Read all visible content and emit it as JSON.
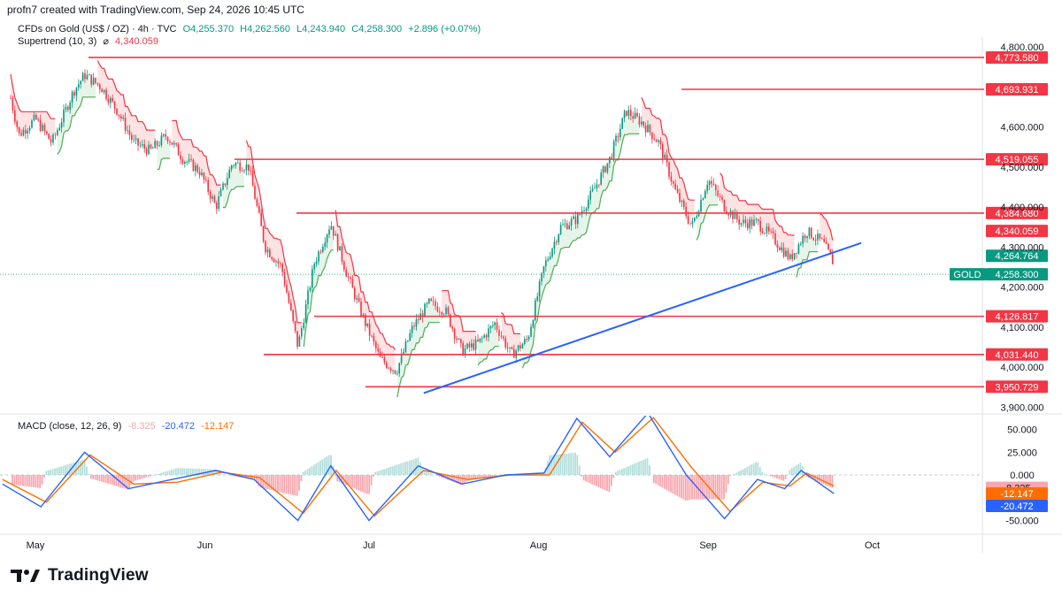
{
  "header": {
    "text": "profn7 created with TradingView.com, Sep 24, 2026 10:45 UTC"
  },
  "legend": {
    "symbol": "CFDs on Gold (US$ / OZ) · 4h · TVC",
    "open": "O4,255.370",
    "high": "H4,262.560",
    "low": "L4,243.940",
    "close": "C4,258.300",
    "change": "+2.896 (+0.07%)",
    "supertrend_label": "Supertrend (10, 3)",
    "supertrend_symbol": "⌀",
    "supertrend_value": "4,340.059"
  },
  "macd_legend": {
    "label": "MACD (close, 12, 26, 9)",
    "hist": "-8.325",
    "macd": "-20.472",
    "signal": "-12.147"
  },
  "footer": {
    "brand": "TradingView"
  },
  "colors": {
    "up": "#089981",
    "down": "#f23645",
    "level": "#f23645",
    "trendline": "#2962ff",
    "macd": "#2962ff",
    "signal": "#ff6d00",
    "st_up_fill": "#e6f4ea",
    "st_down_fill": "#fde3e3"
  },
  "chart_data": {
    "type": "candlestick",
    "symbol": "GOLD",
    "timeframe": "4h",
    "x_labels": [
      "May",
      "Jun",
      "Jul",
      "Aug",
      "Sep",
      "Oct"
    ],
    "y_ticks": [
      "4,800.000",
      "4,600.000",
      "4,500.000",
      "4,400.000",
      "4,300.000",
      "4,200.000",
      "4,100.000",
      "4,000.000",
      "3,900.000"
    ],
    "ylim": [
      3880,
      4830
    ],
    "levels": [
      {
        "label": "4,773.580",
        "value": 4773.58
      },
      {
        "label": "4,693.931",
        "value": 4693.931
      },
      {
        "label": "4,519.055",
        "value": 4519.055
      },
      {
        "label": "4,384.680",
        "value": 4384.68
      },
      {
        "label": "4,126.817",
        "value": 4126.817
      },
      {
        "label": "4,031.440",
        "value": 4031.44
      },
      {
        "label": "3,950.729",
        "value": 3950.729
      }
    ],
    "price_tags": [
      {
        "label": "4,340.059",
        "value": 4340.059,
        "kind": "supertrend"
      },
      {
        "label": "4,264.764",
        "value": 4264.764,
        "kind": "bid"
      },
      {
        "label": "4,258.300",
        "value": 4258.3,
        "kind": "last",
        "prefix": "GOLD"
      }
    ],
    "trendline": {
      "from": [
        "2026-07-11",
        3935
      ],
      "to": [
        "2026-09-29",
        4310
      ]
    },
    "close_path": [
      [
        "2026-04-25",
        4760
      ],
      [
        "2026-04-28",
        4580
      ],
      [
        "2026-05-01",
        4620
      ],
      [
        "2026-05-04",
        4560
      ],
      [
        "2026-05-08",
        4690
      ],
      [
        "2026-05-10",
        4730
      ],
      [
        "2026-05-13",
        4700
      ],
      [
        "2026-05-16",
        4640
      ],
      [
        "2026-05-19",
        4560
      ],
      [
        "2026-05-22",
        4540
      ],
      [
        "2026-05-25",
        4580
      ],
      [
        "2026-05-28",
        4520
      ],
      [
        "2026-05-31",
        4490
      ],
      [
        "2026-06-03",
        4400
      ],
      [
        "2026-06-06",
        4510
      ],
      [
        "2026-06-09",
        4500
      ],
      [
        "2026-06-12",
        4300
      ],
      [
        "2026-06-15",
        4250
      ],
      [
        "2026-06-18",
        4050
      ],
      [
        "2026-06-21",
        4260
      ],
      [
        "2026-06-24",
        4360
      ],
      [
        "2026-06-27",
        4230
      ],
      [
        "2026-06-30",
        4120
      ],
      [
        "2026-07-03",
        4020
      ],
      [
        "2026-07-06",
        3990
      ],
      [
        "2026-07-09",
        4100
      ],
      [
        "2026-07-12",
        4160
      ],
      [
        "2026-07-15",
        4140
      ],
      [
        "2026-07-18",
        4040
      ],
      [
        "2026-07-21",
        4060
      ],
      [
        "2026-07-24",
        4110
      ],
      [
        "2026-07-27",
        4030
      ],
      [
        "2026-07-30",
        4070
      ],
      [
        "2026-08-02",
        4250
      ],
      [
        "2026-08-05",
        4350
      ],
      [
        "2026-08-08",
        4370
      ],
      [
        "2026-08-11",
        4440
      ],
      [
        "2026-08-14",
        4520
      ],
      [
        "2026-08-17",
        4640
      ],
      [
        "2026-08-20",
        4610
      ],
      [
        "2026-08-23",
        4560
      ],
      [
        "2026-08-26",
        4440
      ],
      [
        "2026-08-29",
        4350
      ],
      [
        "2026-09-01",
        4470
      ],
      [
        "2026-09-04",
        4400
      ],
      [
        "2026-09-07",
        4360
      ],
      [
        "2026-09-10",
        4360
      ],
      [
        "2026-09-13",
        4320
      ],
      [
        "2026-09-16",
        4270
      ],
      [
        "2026-09-19",
        4340
      ],
      [
        "2026-09-22",
        4310
      ],
      [
        "2026-09-24",
        4258
      ]
    ],
    "macd": {
      "yticks": [
        "50.000",
        "25.000",
        "0.000",
        "-50.000"
      ],
      "ylim": [
        -58,
        72
      ],
      "macd_path": [
        [
          "2026-04-25",
          -10
        ],
        [
          "2026-05-02",
          -35
        ],
        [
          "2026-05-10",
          25
        ],
        [
          "2026-05-18",
          -15
        ],
        [
          "2026-05-26",
          -5
        ],
        [
          "2026-06-03",
          5
        ],
        [
          "2026-06-10",
          -5
        ],
        [
          "2026-06-18",
          -50
        ],
        [
          "2026-06-24",
          10
        ],
        [
          "2026-07-01",
          -50
        ],
        [
          "2026-07-10",
          10
        ],
        [
          "2026-07-18",
          -10
        ],
        [
          "2026-07-26",
          0
        ],
        [
          "2026-08-02",
          2
        ],
        [
          "2026-08-08",
          62
        ],
        [
          "2026-08-14",
          20
        ],
        [
          "2026-08-21",
          68
        ],
        [
          "2026-08-28",
          0
        ],
        [
          "2026-09-04",
          -48
        ],
        [
          "2026-09-10",
          -5
        ],
        [
          "2026-09-15",
          -15
        ],
        [
          "2026-09-18",
          5
        ],
        [
          "2026-09-24",
          -20.472
        ]
      ],
      "signal_path": [
        [
          "2026-04-25",
          -5
        ],
        [
          "2026-05-03",
          -30
        ],
        [
          "2026-05-11",
          22
        ],
        [
          "2026-05-19",
          -10
        ],
        [
          "2026-05-27",
          -8
        ],
        [
          "2026-06-04",
          3
        ],
        [
          "2026-06-11",
          -3
        ],
        [
          "2026-06-19",
          -42
        ],
        [
          "2026-06-25",
          5
        ],
        [
          "2026-07-02",
          -45
        ],
        [
          "2026-07-11",
          5
        ],
        [
          "2026-07-19",
          -5
        ],
        [
          "2026-07-27",
          0
        ],
        [
          "2026-08-03",
          0
        ],
        [
          "2026-08-09",
          58
        ],
        [
          "2026-08-15",
          25
        ],
        [
          "2026-08-22",
          63
        ],
        [
          "2026-08-29",
          8
        ],
        [
          "2026-09-05",
          -40
        ],
        [
          "2026-09-11",
          -8
        ],
        [
          "2026-09-16",
          -12
        ],
        [
          "2026-09-19",
          2
        ],
        [
          "2026-09-24",
          -12.147
        ]
      ]
    }
  }
}
